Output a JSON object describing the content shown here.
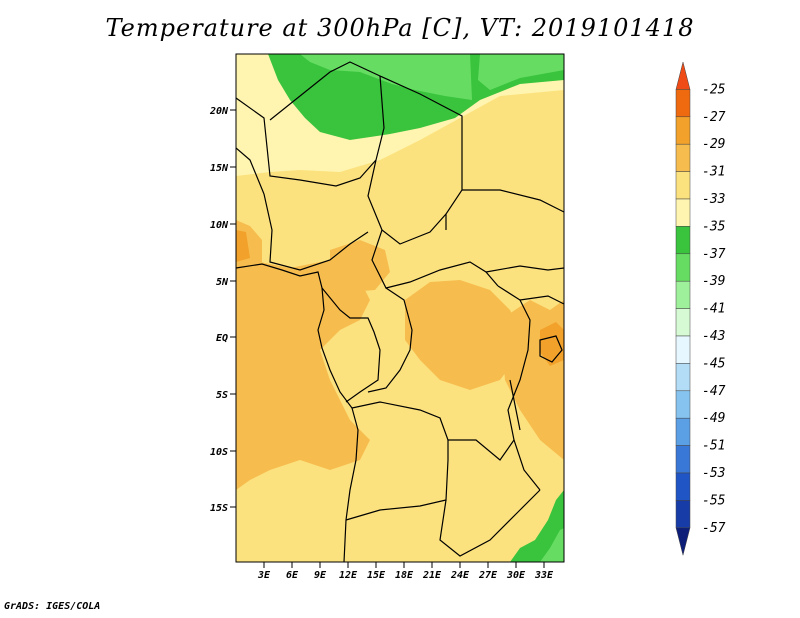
{
  "title": "Temperature at 300hPa [C], VT: 2019101418",
  "credit": "GrADS: IGES/COLA",
  "map": {
    "lat_labels": [
      "20N",
      "15N",
      "10N",
      "5N",
      "EQ",
      "5S",
      "10S",
      "15S"
    ],
    "lon_labels": [
      "3E",
      "6E",
      "9E",
      "12E",
      "15E",
      "18E",
      "21E",
      "24E",
      "27E",
      "30E",
      "33E"
    ],
    "background_color": "#fce27f"
  },
  "colorbar": {
    "labels": [
      "-25",
      "-27",
      "-29",
      "-31",
      "-33",
      "-35",
      "-37",
      "-39",
      "-41",
      "-43",
      "-45",
      "-47",
      "-49",
      "-51",
      "-53",
      "-55",
      "-57"
    ],
    "colors": [
      "#ee4b16",
      "#ef6a0e",
      "#f2a12b",
      "#f6bd4e",
      "#fce27f",
      "#fff5b0",
      "#3ac43d",
      "#66dd62",
      "#9ef09a",
      "#d6fad4",
      "#e6f7ff",
      "#b3dcf7",
      "#86c3ee",
      "#5b9fe4",
      "#3a78d8",
      "#1f55c4",
      "#173ca8",
      "#0d1e78"
    ]
  }
}
